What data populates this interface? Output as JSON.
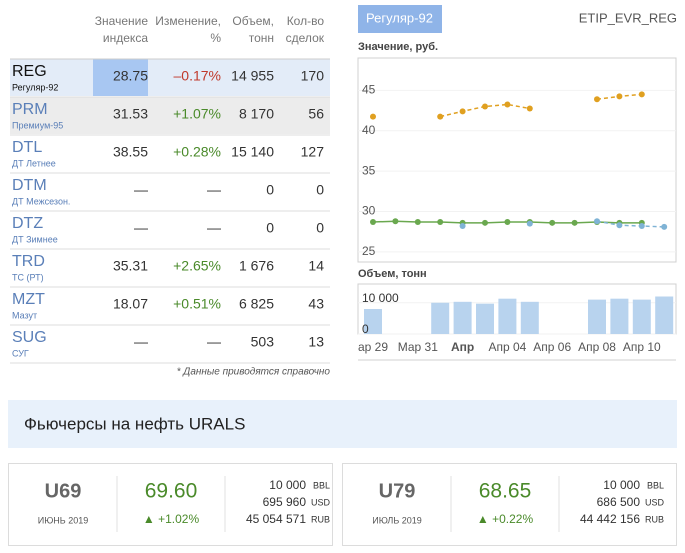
{
  "table": {
    "headers": [
      [
        "Значение",
        "индекса"
      ],
      [
        "Изменение,",
        "%"
      ],
      [
        "Объем,",
        "тонн"
      ],
      [
        "Кол-во",
        "сделок"
      ]
    ],
    "rows": [
      {
        "code": "REG",
        "name": "Регуляр-92",
        "index": "28.75",
        "change": "–0.17%",
        "volume": "14 955",
        "deals": "170"
      },
      {
        "code": "PRM",
        "name": "Премиум-95",
        "index": "31.53",
        "change": "+1.07%",
        "volume": "8 170",
        "deals": "56"
      },
      {
        "code": "DTL",
        "name": "ДТ Летнее",
        "index": "38.55",
        "change": "+0.28%",
        "volume": "15 140",
        "deals": "127"
      },
      {
        "code": "DTM",
        "name": "ДТ Межсезон.",
        "index": "—",
        "change": "—",
        "volume": "0",
        "deals": "0"
      },
      {
        "code": "DTZ",
        "name": "ДТ Зимнее",
        "index": "—",
        "change": "—",
        "volume": "0",
        "deals": "0"
      },
      {
        "code": "TRD",
        "name": "ТС (РТ)",
        "index": "35.31",
        "change": "+2.65%",
        "volume": "1 676",
        "deals": "14"
      },
      {
        "code": "MZT",
        "name": "Мазут",
        "index": "18.07",
        "change": "+0.51%",
        "volume": "6 825",
        "deals": "43"
      },
      {
        "code": "SUG",
        "name": "СУГ",
        "index": "—",
        "change": "—",
        "volume": "503",
        "deals": "13"
      }
    ],
    "note": "* Данные приводятся справочно"
  },
  "chart_data": [
    {
      "type": "line",
      "tab": "Регуляр-92",
      "code": "ETIP_EVR_REG",
      "title": "Значение, руб.",
      "categories": [
        "ар 29",
        null,
        "Мар 31",
        null,
        "Апр",
        null,
        "Апр 04",
        null,
        "Апр 06",
        null,
        "Апр 08",
        null,
        "Апр 10",
        null
      ],
      "ylim": [
        23.75,
        49
      ],
      "yticks": [
        25,
        30,
        35,
        40,
        45
      ],
      "series": [
        {
          "color": "#e0a020",
          "dashed": true,
          "values": [
            41.75,
            null,
            null,
            41.75,
            42.4,
            43,
            43.25,
            42.75,
            null,
            null,
            43.9,
            44.25,
            44.5,
            null
          ]
        },
        {
          "color": "#6aa84f",
          "dashed": false,
          "values": [
            28.7,
            28.8,
            28.7,
            28.7,
            28.6,
            28.6,
            28.7,
            28.7,
            28.6,
            28.6,
            28.7,
            28.6,
            28.6,
            null
          ]
        },
        {
          "color": "#7fb3d5",
          "dashed": true,
          "values": [
            null,
            null,
            null,
            null,
            28.2,
            null,
            null,
            28.5,
            null,
            null,
            28.8,
            28.3,
            28.2,
            28.1
          ]
        }
      ]
    },
    {
      "type": "bar",
      "title": "Объем, тонн",
      "color": "#b8d3ee",
      "ylim": [
        0,
        16000
      ],
      "yticks": [
        {
          "value": 0,
          "label": "0"
        },
        {
          "value": 10000,
          "label": "10 000"
        }
      ],
      "values": [
        8000,
        null,
        null,
        10000,
        10300,
        9700,
        11300,
        10300,
        null,
        null,
        11000,
        11300,
        11000,
        12000
      ]
    }
  ],
  "futures": {
    "title": "Фьючерсы на нефть URALS",
    "cards": [
      {
        "code": "U69",
        "month": "ИЮНЬ 2019",
        "price": "69.60",
        "change": "▲ +1.02%",
        "lines": [
          [
            "10 000",
            "BBL"
          ],
          [
            "695 960",
            "USD"
          ],
          [
            "45 054 571",
            "RUB"
          ]
        ]
      },
      {
        "code": "U79",
        "month": "ИЮЛЬ 2019",
        "price": "68.65",
        "change": "▲ +0.22%",
        "lines": [
          [
            "10 000",
            "BBL"
          ],
          [
            "686 500",
            "USD"
          ],
          [
            "44 442 156",
            "RUB"
          ]
        ]
      }
    ]
  }
}
